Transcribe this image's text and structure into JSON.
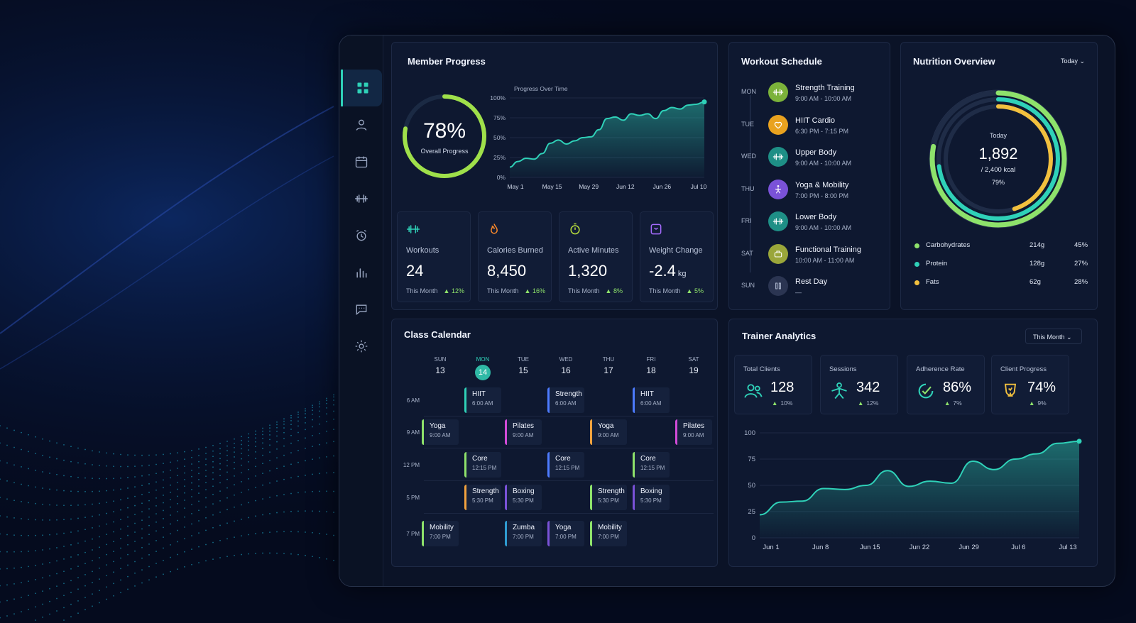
{
  "sidebar": {
    "items": [
      {
        "icon": "dashboard-icon",
        "active": true
      },
      {
        "icon": "user-icon"
      },
      {
        "icon": "calendar-icon"
      },
      {
        "icon": "dumbbell-icon"
      },
      {
        "icon": "alarm-icon"
      },
      {
        "icon": "bar-chart-icon"
      },
      {
        "icon": "chat-icon"
      },
      {
        "icon": "gear-icon"
      }
    ]
  },
  "member_progress": {
    "title": "Member Progress",
    "overall_value": "78%",
    "overall_label": "Overall Progress",
    "overall_fraction": 0.78,
    "chart_title": "Progress Over Time",
    "stats": [
      {
        "icon": "dumbbell-icon",
        "label": "Workouts",
        "value": "24",
        "unit": "",
        "period": "This Month",
        "change": "▲ 12%",
        "color": "#2fd1b8"
      },
      {
        "icon": "flame-icon",
        "label": "Calories Burned",
        "value": "8,450",
        "unit": "",
        "period": "This Month",
        "change": "▲ 16%",
        "color": "#ff8a2a"
      },
      {
        "icon": "stopwatch-icon",
        "label": "Active Minutes",
        "value": "1,320",
        "unit": "",
        "period": "This Month",
        "change": "▲ 8%",
        "color": "#b6dc3c"
      },
      {
        "icon": "scale-icon",
        "label": "Weight Change",
        "value": "-2.4",
        "unit": "kg",
        "period": "This Month",
        "change": "▲ 5%",
        "color": "#a66bff"
      }
    ]
  },
  "workout_schedule": {
    "title": "Workout Schedule",
    "items": [
      {
        "day": "MON",
        "name": "Strength Training",
        "time": "9:00 AM - 10:00 AM",
        "icon": "dumbbell-icon",
        "color": "#7bb23a"
      },
      {
        "day": "TUE",
        "name": "HIIT Cardio",
        "time": "6:30 PM - 7:15 PM",
        "icon": "heart-icon",
        "color": "#e9a21f"
      },
      {
        "day": "WED",
        "name": "Upper Body",
        "time": "9:00 AM - 10:00 AM",
        "icon": "dumbbell-icon",
        "color": "#1e8f86"
      },
      {
        "day": "THU",
        "name": "Yoga & Mobility",
        "time": "7:00 PM - 8:00 PM",
        "icon": "yoga-icon",
        "color": "#7a52d8"
      },
      {
        "day": "FRI",
        "name": "Lower Body",
        "time": "9:00 AM - 10:00 AM",
        "icon": "dumbbell-icon",
        "color": "#1e8f86"
      },
      {
        "day": "SAT",
        "name": "Functional Training",
        "time": "10:00 AM - 11:00 AM",
        "icon": "functional-icon",
        "color": "#9aa63a"
      },
      {
        "day": "SUN",
        "name": "Rest Day",
        "time": "—",
        "icon": "rest-icon",
        "color": "#2b3552"
      }
    ]
  },
  "nutrition": {
    "title": "Nutrition Overview",
    "period": "Today",
    "center_label": "Today",
    "center_value": "1,892",
    "center_sub": "/ 2,400 kcal",
    "center_pct": "79%",
    "items": [
      {
        "name": "Carbohydrates",
        "grams": "214g",
        "pct": "45%",
        "color": "#8ee26b",
        "fraction": 0.45
      },
      {
        "name": "Protein",
        "grams": "128g",
        "pct": "27%",
        "color": "#2fd1b8",
        "fraction": 0.27
      },
      {
        "name": "Fats",
        "grams": "62g",
        "pct": "28%",
        "color": "#f2c03e",
        "fraction": 0.28
      }
    ]
  },
  "class_calendar": {
    "title": "Class Calendar",
    "days": [
      {
        "d": "SUN",
        "n": "13"
      },
      {
        "d": "MON",
        "n": "14",
        "today": true
      },
      {
        "d": "TUE",
        "n": "15"
      },
      {
        "d": "WED",
        "n": "16"
      },
      {
        "d": "THU",
        "n": "17"
      },
      {
        "d": "FRI",
        "n": "18"
      },
      {
        "d": "SAT",
        "n": "19"
      }
    ],
    "hours": [
      "6 AM",
      "9 AM",
      "12 PM",
      "5 PM",
      "7 PM"
    ],
    "events": [
      {
        "name": "HIIT",
        "time": "6:00 AM",
        "day": 1,
        "row": 0,
        "color": "#2fd1b8"
      },
      {
        "name": "Strength",
        "time": "6:00 AM",
        "day": 3,
        "row": 0,
        "color": "#4d7bff"
      },
      {
        "name": "HIIT",
        "time": "6:00 AM",
        "day": 5,
        "row": 0,
        "color": "#4d7bff"
      },
      {
        "name": "Yoga",
        "time": "9:00 AM",
        "day": 0,
        "row": 1,
        "color": "#8ee26b"
      },
      {
        "name": "Pilates",
        "time": "9:00 AM",
        "day": 2,
        "row": 1,
        "color": "#d24bd8"
      },
      {
        "name": "Yoga",
        "time": "9:00 AM",
        "day": 4,
        "row": 1,
        "color": "#f2a23e"
      },
      {
        "name": "Pilates",
        "time": "9:00 AM",
        "day": 6,
        "row": 1,
        "color": "#d24bd8"
      },
      {
        "name": "Core",
        "time": "12:15 PM",
        "day": 1,
        "row": 2,
        "color": "#8ee26b"
      },
      {
        "name": "Core",
        "time": "12:15 PM",
        "day": 3,
        "row": 2,
        "color": "#4d7bff"
      },
      {
        "name": "Core",
        "time": "12:15 PM",
        "day": 5,
        "row": 2,
        "color": "#8ee26b"
      },
      {
        "name": "Strength",
        "time": "5:30 PM",
        "day": 1,
        "row": 3,
        "color": "#f2a23e"
      },
      {
        "name": "Boxing",
        "time": "5:30 PM",
        "day": 2,
        "row": 3,
        "color": "#7a52d8"
      },
      {
        "name": "Strength",
        "time": "5:30 PM",
        "day": 4,
        "row": 3,
        "color": "#8ee26b"
      },
      {
        "name": "Boxing",
        "time": "5:30 PM",
        "day": 5,
        "row": 3,
        "color": "#7a52d8"
      },
      {
        "name": "Mobility",
        "time": "7:00 PM",
        "day": 0,
        "row": 4,
        "color": "#8ee26b"
      },
      {
        "name": "Zumba",
        "time": "7:00 PM",
        "day": 2,
        "row": 4,
        "color": "#2f9bd1"
      },
      {
        "name": "Yoga",
        "time": "7:00 PM",
        "day": 3,
        "row": 4,
        "color": "#7a52d8"
      },
      {
        "name": "Mobility",
        "time": "7:00 PM",
        "day": 4,
        "row": 4,
        "color": "#8ee26b"
      }
    ]
  },
  "trainer_analytics": {
    "title": "Trainer Analytics",
    "period": "This Month",
    "stats": [
      {
        "label": "Total Clients",
        "value": "128",
        "change": "10%",
        "icon": "users-icon"
      },
      {
        "label": "Sessions",
        "value": "342",
        "change": "12%",
        "icon": "person-trainer-icon"
      },
      {
        "label": "Adherence Rate",
        "value": "86%",
        "change": "7%",
        "icon": "adherence-icon"
      },
      {
        "label": "Client Progress",
        "value": "74%",
        "change": "9%",
        "icon": "progress-badge-icon"
      }
    ]
  },
  "chart_data": [
    {
      "type": "area",
      "title": "Progress Over Time",
      "x_ticks": [
        "May 1",
        "May 15",
        "May 29",
        "Jun 12",
        "Jun 26",
        "Jul 10"
      ],
      "y_ticks": [
        "0%",
        "25%",
        "50%",
        "75%",
        "100%"
      ],
      "ylim": [
        0,
        100
      ],
      "series": [
        {
          "values": [
            13,
            20,
            24,
            23,
            30,
            43,
            47,
            42,
            46,
            50,
            51,
            60,
            74,
            76,
            72,
            80,
            78,
            80,
            74,
            84,
            88,
            86,
            91,
            92,
            95
          ]
        }
      ]
    },
    {
      "type": "area",
      "title": "",
      "x_ticks": [
        "Jun 1",
        "Jun 8",
        "Jun 15",
        "Jun 22",
        "Jun 29",
        "Jul 6",
        "Jul 13"
      ],
      "y_ticks": [
        "0",
        "25",
        "50",
        "75",
        "100"
      ],
      "ylim": [
        0,
        100
      ],
      "series": [
        {
          "values": [
            22,
            34,
            35,
            47,
            46,
            50,
            64,
            49,
            54,
            52,
            73,
            65,
            75,
            80,
            90,
            92
          ]
        }
      ]
    }
  ]
}
